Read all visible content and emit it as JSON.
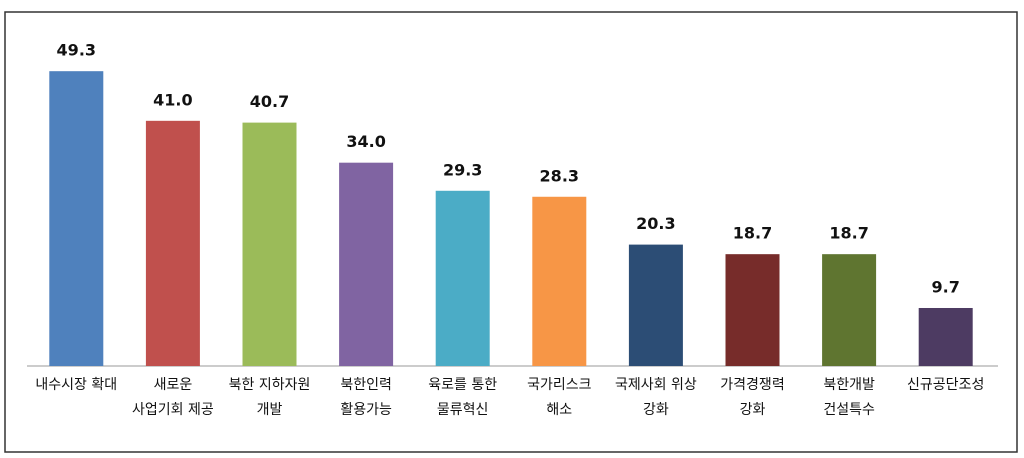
{
  "chart_data": {
    "type": "bar",
    "categories": [
      [
        "내수시장 확대"
      ],
      [
        "새로운",
        "사업기회 제공"
      ],
      [
        "북한 지하자원",
        "개발"
      ],
      [
        "북한인력",
        "활용가능"
      ],
      [
        "육로를 통한",
        "물류혁신"
      ],
      [
        "국가리스크",
        "해소"
      ],
      [
        "국제사회 위상",
        "강화"
      ],
      [
        "가격경쟁력",
        "강화"
      ],
      [
        "북한개발",
        "건설특수"
      ],
      [
        "신규공단조성"
      ]
    ],
    "values": [
      49.3,
      41.0,
      40.7,
      34.0,
      29.3,
      28.3,
      20.3,
      18.7,
      18.7,
      9.7
    ],
    "value_labels": [
      "49.3",
      "41.0",
      "40.7",
      "34.0",
      "29.3",
      "28.3",
      "20.3",
      "18.7",
      "18.7",
      "9.7"
    ],
    "colors": [
      "#4f81bd",
      "#c0504d",
      "#9bbb59",
      "#8064a2",
      "#4bacc6",
      "#f79646",
      "#2c4d75",
      "#772c2a",
      "#5f7530",
      "#4d3b62"
    ],
    "ylim": [
      0,
      50
    ]
  }
}
